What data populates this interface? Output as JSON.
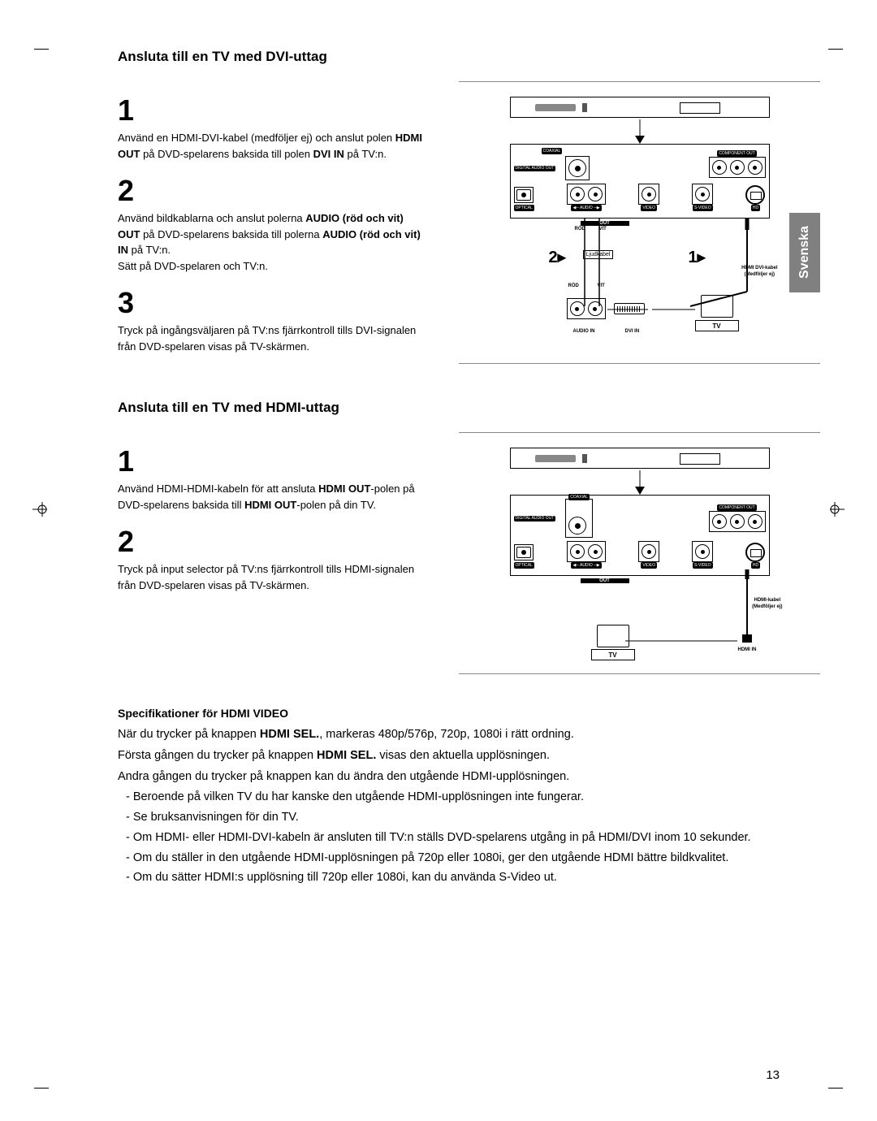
{
  "lang_tab": "Svenska",
  "page_number": "13",
  "section_dvi": {
    "title": "Ansluta till en TV med DVI-uttag",
    "steps": [
      {
        "num": "1",
        "text_parts": [
          {
            "t": "Använd en HDMI-DVI-kabel (medföljer ej) och anslut polen ",
            "b": false
          },
          {
            "t": "HDMI OUT",
            "b": true
          },
          {
            "t": " på DVD-spelarens baksida till polen ",
            "b": false
          },
          {
            "t": "DVI IN",
            "b": true
          },
          {
            "t": " på TV:n.",
            "b": false
          }
        ]
      },
      {
        "num": "2",
        "text_parts": [
          {
            "t": "Använd bildkablarna och anslut polerna ",
            "b": false
          },
          {
            "t": "AUDIO (röd och vit) OUT",
            "b": true
          },
          {
            "t": " på DVD-spelarens baksida till polerna ",
            "b": false
          },
          {
            "t": "AUDIO (röd och vit) IN",
            "b": true
          },
          {
            "t": " på TV:n.\nSätt på DVD-spelaren och TV:n.",
            "b": false
          }
        ]
      },
      {
        "num": "3",
        "text_parts": [
          {
            "t": "Tryck på ingångsväljaren på TV:ns fjärrkontroll tills DVI-signalen från DVD-spelaren visas på TV-skärmen.",
            "b": false
          }
        ]
      }
    ],
    "diagram": {
      "labels": {
        "coaxial": "COAXIAL",
        "component": "COMPONENT OUT",
        "digital": "DIGITAL\nAUDIO OUT",
        "optical": "OPTICAL",
        "audio": "AUDIO",
        "out": "OUT",
        "video": "VIDEO",
        "svideo": "S-VIDEO",
        "hd": "HD",
        "rod": "RÖD",
        "vit": "VIT",
        "ljudkabel": "Ljudkabel",
        "hdmi_cable": "HDMI DVI-kabel\n(Medföljer ej)",
        "tv": "TV",
        "audio_in": "AUDIO IN",
        "dvi_in": "DVI IN"
      },
      "step_marks": {
        "1": "1▸",
        "2": "2▸"
      }
    }
  },
  "section_hdmi": {
    "title": "Ansluta till en TV med HDMI-uttag",
    "steps": [
      {
        "num": "1",
        "text_parts": [
          {
            "t": "Använd HDMI-HDMI-kabeln för att ansluta ",
            "b": false
          },
          {
            "t": "HDMI OUT",
            "b": true
          },
          {
            "t": "-polen på DVD-spelarens baksida till ",
            "b": false
          },
          {
            "t": "HDMI OUT",
            "b": true
          },
          {
            "t": "-polen på din TV.",
            "b": false
          }
        ]
      },
      {
        "num": "2",
        "text_parts": [
          {
            "t": "Tryck på input selector på TV:ns fjärrkontroll tills HDMI-signalen från DVD-spelaren visas på TV-skärmen.",
            "b": false
          }
        ]
      }
    ],
    "diagram": {
      "labels": {
        "coaxial": "COAXIAL",
        "component": "COMPONENT OUT",
        "digital": "DIGITAL\nAUDIO OUT",
        "optical": "OPTICAL",
        "audio": "AUDIO",
        "out": "OUT",
        "video": "VIDEO",
        "svideo": "S-VIDEO",
        "hd": "HD",
        "hdmi_cable": "HDMI-kabel\n(Medföljer ej)",
        "tv": "TV",
        "hdmi_in": "HDMI IN"
      }
    }
  },
  "spec": {
    "heading": "Specifikationer för HDMI VIDEO",
    "p1_parts": [
      {
        "t": "När du trycker på knappen ",
        "b": false
      },
      {
        "t": "HDMI SEL.",
        "b": true
      },
      {
        "t": ", markeras 480p/576p, 720p, 1080i i rätt ordning.",
        "b": false
      }
    ],
    "p2_parts": [
      {
        "t": "Första gången du trycker på knappen ",
        "b": false
      },
      {
        "t": "HDMI SEL.",
        "b": true
      },
      {
        "t": " visas den aktuella upplösningen.",
        "b": false
      }
    ],
    "p3": "Andra gången du trycker på knappen kan du ändra den utgående HDMI-upplösningen.",
    "bullets": [
      "- Beroende på vilken TV du har kanske den utgående HDMI-upplösningen inte fungerar.",
      "- Se bruksanvisningen för din TV.",
      "- Om HDMI- eller HDMI-DVI-kabeln är ansluten till TV:n ställs DVD-spelarens utgång in på HDMI/DVI inom 10 sekunder.",
      "- Om du ställer in den utgående HDMI-upplösningen på 720p eller 1080i, ger den utgående HDMI bättre bildkvalitet.",
      "- Om du sätter HDMI:s upplösning till 720p eller 1080i, kan du använda S-Video ut."
    ]
  }
}
